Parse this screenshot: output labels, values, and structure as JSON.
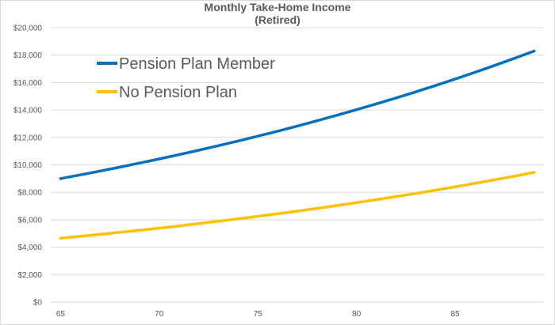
{
  "chart_data": {
    "type": "line",
    "title": [
      "Monthly Take-Home Income",
      "(Retired)"
    ],
    "xlabel": "",
    "ylabel": "",
    "x": [
      65,
      66,
      67,
      68,
      69,
      70,
      71,
      72,
      73,
      74,
      75,
      76,
      77,
      78,
      79,
      80,
      81,
      82,
      83,
      84,
      85,
      86,
      87,
      88,
      89
    ],
    "xlim": [
      64.5,
      89.5
    ],
    "xticks": [
      65,
      70,
      75,
      80,
      85
    ],
    "xtick_labels": [
      "65",
      "70",
      "75",
      "80",
      "85"
    ],
    "ylim": [
      0,
      20000
    ],
    "yticks": [
      0,
      2000,
      4000,
      6000,
      8000,
      10000,
      12000,
      14000,
      16000,
      18000,
      20000
    ],
    "ytick_labels": [
      "$0",
      "$2,000",
      "$4,000",
      "$6,000",
      "$8,000",
      "$10,000",
      "$12,000",
      "$14,000",
      "$16,000",
      "$18,000",
      "$20,000"
    ],
    "grid": "horizontal",
    "legend_placement": "top-left",
    "series": [
      {
        "name": "Pension Plan Member",
        "color": "#0070c0",
        "values": [
          9000,
          9270,
          9548,
          9835,
          10130,
          10433,
          10746,
          11069,
          11401,
          11743,
          12095,
          12458,
          12832,
          13217,
          13613,
          14022,
          14442,
          14876,
          15322,
          15782,
          16255,
          16743,
          17245,
          17762,
          18295
        ]
      },
      {
        "name": "No Pension Plan",
        "color": "#ffc000",
        "values": [
          4650,
          4790,
          4933,
          5081,
          5234,
          5391,
          5552,
          5719,
          5890,
          6067,
          6249,
          6437,
          6630,
          6829,
          7034,
          7245,
          7462,
          7686,
          7916,
          8154,
          8398,
          8650,
          8910,
          9177,
          9452
        ]
      }
    ]
  }
}
